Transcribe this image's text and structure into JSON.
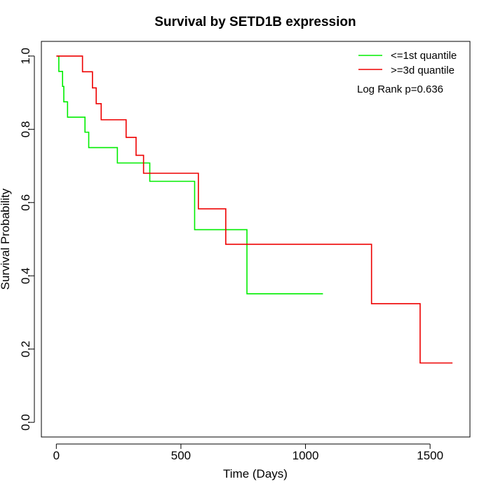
{
  "chart_data": {
    "type": "line",
    "title": "Survival by SETD1B expression",
    "xlabel": "Time (Days)",
    "ylabel": "Survival Probability",
    "xlim": [
      -60,
      1660
    ],
    "ylim": [
      -0.04,
      1.04
    ],
    "x_ticks": [
      0,
      500,
      1000,
      1500
    ],
    "y_ticks": [
      0.0,
      0.2,
      0.4,
      0.6,
      0.8,
      1.0
    ],
    "x_tick_labels": [
      "0",
      "500",
      "1000",
      "1500"
    ],
    "y_tick_labels": [
      "0.0",
      "0.2",
      "0.4",
      "0.6",
      "0.8",
      "1.0"
    ],
    "grid": false,
    "legend_position": "top-right",
    "annotation": "Log Rank p=0.636",
    "series": [
      {
        "name": "<=1st quantile",
        "color": "#00ee00",
        "step": true,
        "x": [
          5,
          10,
          25,
          30,
          45,
          115,
          130,
          245,
          375,
          555,
          765,
          1070
        ],
        "y": [
          1.0,
          0.958,
          0.917,
          0.875,
          0.833,
          0.792,
          0.75,
          0.708,
          0.658,
          0.526,
          0.351,
          0.351
        ]
      },
      {
        "name": ">=3d quantile",
        "color": "#ee0000",
        "step": true,
        "x": [
          0,
          105,
          145,
          160,
          180,
          280,
          320,
          350,
          570,
          680,
          1265,
          1460,
          1590
        ],
        "y": [
          1.0,
          0.957,
          0.913,
          0.87,
          0.826,
          0.778,
          0.729,
          0.68,
          0.583,
          0.486,
          0.324,
          0.162,
          0.162
        ]
      }
    ]
  }
}
